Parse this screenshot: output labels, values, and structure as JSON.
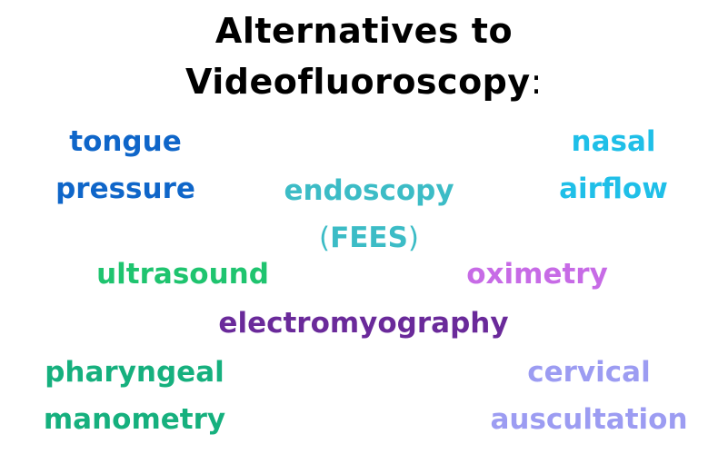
{
  "title": {
    "line1": "Alternatives to",
    "line2": "Videofluoroscopy",
    "colon": ":"
  },
  "colors": {
    "title": "#000000",
    "tongue_pressure": "#0f66c9",
    "nasal_airflow": "#1fbfe8",
    "endoscopy": "#3cbcc6",
    "ultrasound": "#1fc46f",
    "oximetry": "#c76be6",
    "electromyography": "#6a2a9a",
    "pharyngeal_manometry": "#16b07e",
    "cervical_auscultation": "#9c9cf2"
  },
  "terms": {
    "tongue_pressure": {
      "line1": "tongue",
      "line2": "pressure"
    },
    "nasal_airflow": {
      "line1": "nasal",
      "line2": "airflow"
    },
    "endoscopy": {
      "line1": "endoscopy",
      "paren_open": "(",
      "abbr": "FEES",
      "paren_close": ")"
    },
    "ultrasound": {
      "line1": "ultrasound"
    },
    "oximetry": {
      "line1": "oximetry"
    },
    "electromyography": {
      "line1": "electromyography"
    },
    "pharyngeal_manometry": {
      "line1": "pharyngeal",
      "line2": "manometry"
    },
    "cervical_auscultation": {
      "line1": "cervical",
      "line2": "auscultation"
    }
  }
}
